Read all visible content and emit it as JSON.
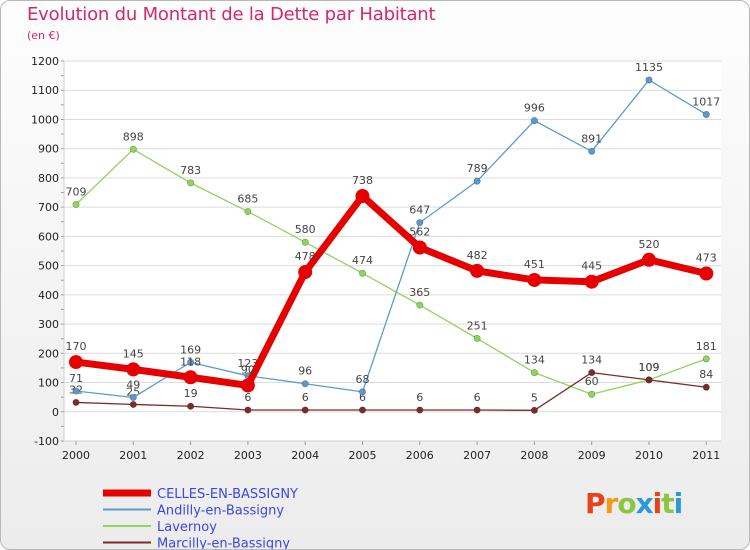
{
  "header": {
    "title": "Evolution du Montant de la Dette par Habitant",
    "subtitle": "(en €)"
  },
  "logo": {
    "letters": [
      "P",
      "r",
      "o",
      "x",
      "i",
      "t",
      "i"
    ],
    "colors": [
      "#e8421c",
      "#f39a1b",
      "#8cc63f",
      "#2b9ad6",
      "#e8421c",
      "#8cc63f",
      "#2b9ad6"
    ]
  },
  "chart_data": {
    "type": "line",
    "title": "Evolution du Montant de la Dette par Habitant",
    "subtitle": "(en €)",
    "xlabel": "",
    "ylabel": "",
    "x": [
      "2000",
      "2001",
      "2002",
      "2003",
      "2004",
      "2005",
      "2006",
      "2007",
      "2008",
      "2009",
      "2010",
      "2011"
    ],
    "ylim": [
      -100,
      1200
    ],
    "yticks": [
      "-100",
      "0",
      "100",
      "200",
      "300",
      "400",
      "500",
      "600",
      "700",
      "800",
      "900",
      "1000",
      "1100",
      "1200"
    ],
    "grid": "horizontal",
    "legend_position": "bottom-left",
    "series": [
      {
        "name": "Lavernoy",
        "color": "#8fd55a",
        "values": [
          709,
          898,
          783,
          685,
          580,
          474,
          365,
          251,
          134,
          60,
          109,
          181
        ],
        "labels": [
          "709",
          "898",
          "783",
          "685",
          "580",
          "474",
          "365",
          "251",
          "134",
          "60",
          "109",
          "181"
        ]
      },
      {
        "name": "Marcilly-en-Bassigny",
        "color": "#7c2b2b",
        "values": [
          32,
          25,
          19,
          6,
          6,
          6,
          6,
          6,
          5,
          134,
          109,
          84
        ],
        "labels": [
          "32",
          "25",
          "19",
          "6",
          "6",
          "6",
          "6",
          "6",
          "5",
          "134",
          "109",
          "84"
        ]
      },
      {
        "name": "Andilly-en-Bassigny",
        "color": "#5b9ad0",
        "values": [
          71,
          49,
          169,
          123,
          96,
          68,
          647,
          789,
          996,
          891,
          1135,
          1017
        ],
        "labels": [
          "71",
          "49",
          "169",
          "123",
          "96",
          "68",
          "647",
          "789",
          "996",
          "891",
          "1135",
          "1017"
        ]
      },
      {
        "name": "CELLES-EN-BASSIGNY",
        "color": "#e60000",
        "values": [
          170,
          145,
          118,
          90,
          478,
          738,
          562,
          482,
          451,
          445,
          520,
          473
        ],
        "labels": [
          "170",
          "145",
          "118",
          "90",
          "478",
          "738",
          "562",
          "482",
          "451",
          "445",
          "520",
          "473"
        ]
      }
    ],
    "legend": [
      {
        "name": "CELLES-EN-BASSIGNY",
        "color": "#e60000",
        "bold": true
      },
      {
        "name": "Andilly-en-Bassigny",
        "color": "#5b9ad0"
      },
      {
        "name": "Lavernoy",
        "color": "#8fd55a"
      },
      {
        "name": "Marcilly-en-Bassigny",
        "color": "#7c2b2b"
      }
    ]
  }
}
